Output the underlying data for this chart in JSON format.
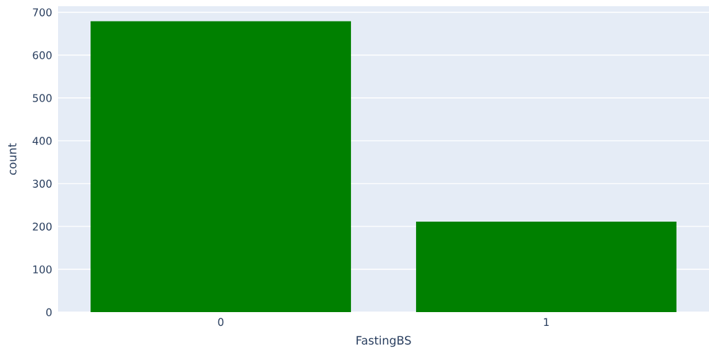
{
  "chart_data": {
    "type": "bar",
    "xlabel": "FastingBS",
    "ylabel": "count",
    "categories": [
      "0",
      "1"
    ],
    "series": [
      {
        "color": "#008000",
        "values": [
          679,
          211
        ]
      }
    ],
    "ylim": [
      0,
      714
    ],
    "yticks": [
      0,
      100,
      200,
      300,
      400,
      500,
      600,
      700
    ],
    "grid": "y",
    "legend": false
  }
}
